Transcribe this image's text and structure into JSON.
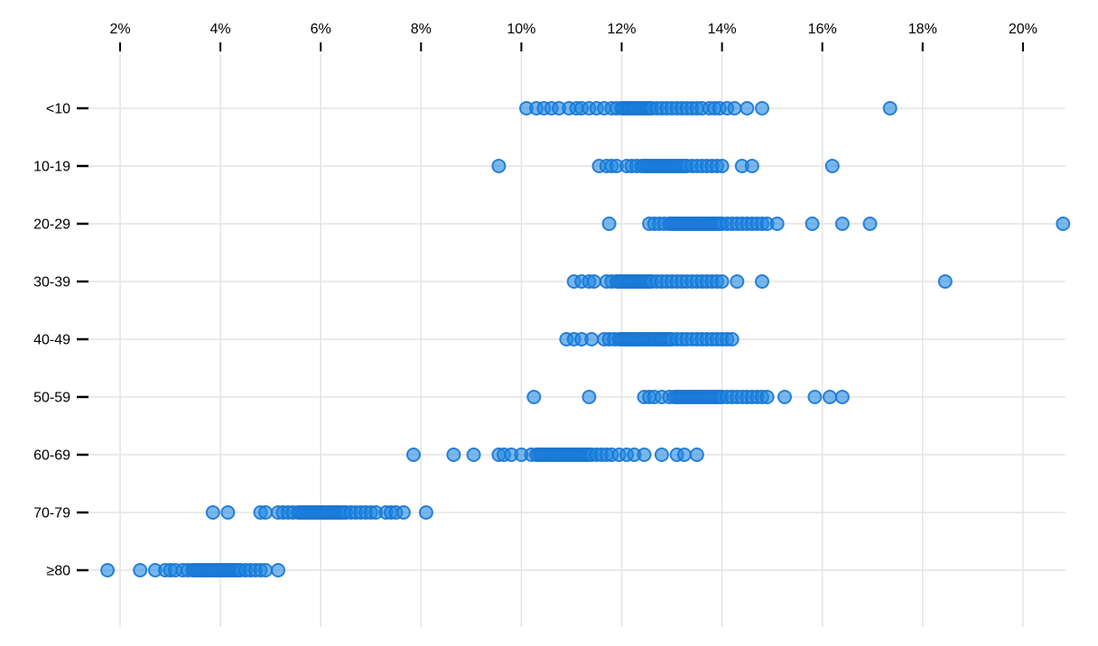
{
  "chart_data": {
    "type": "scatter",
    "variant": "strip-plot",
    "title": "",
    "xlabel": "",
    "ylabel": "",
    "x_axis": {
      "position": "top",
      "unit": "percent",
      "ticks": [
        2,
        4,
        6,
        8,
        10,
        12,
        14,
        16,
        18,
        20
      ],
      "tick_labels": [
        "2%",
        "4%",
        "6%",
        "8%",
        "10%",
        "12%",
        "14%",
        "16%",
        "18%",
        "20%"
      ],
      "range": [
        1.4,
        21.3
      ]
    },
    "y_axis": {
      "position": "left",
      "categories": [
        "<10",
        "10-19",
        "20-29",
        "30-39",
        "40-49",
        "50-59",
        "60-69",
        "70-79",
        "≥80"
      ]
    },
    "grid": true,
    "legend": "none",
    "colors": {
      "dot_fill": "#1e88e5",
      "dot_fill_opacity": 0.6,
      "dot_stroke": "#1976d2",
      "dot_stroke_opacity": 0.9,
      "gridline": "#e4e4e4",
      "axis_tick": "#000000",
      "text": "#000000",
      "background": "#ffffff"
    },
    "series": [
      {
        "name": "<10",
        "values": [
          10.1,
          10.3,
          10.45,
          10.6,
          10.75,
          10.95,
          11.1,
          11.2,
          11.35,
          11.5,
          11.65,
          11.8,
          11.9,
          12.0,
          12.05,
          12.1,
          12.15,
          12.2,
          12.25,
          12.3,
          12.35,
          12.4,
          12.45,
          12.5,
          12.55,
          12.6,
          12.7,
          12.8,
          12.9,
          13.0,
          13.1,
          13.2,
          13.3,
          13.4,
          13.5,
          13.6,
          13.75,
          13.85,
          13.95,
          14.1,
          14.25,
          14.5,
          14.8,
          17.35
        ]
      },
      {
        "name": "10-19",
        "values": [
          9.55,
          11.55,
          11.7,
          11.8,
          11.9,
          12.1,
          12.2,
          12.3,
          12.4,
          12.45,
          12.5,
          12.55,
          12.6,
          12.65,
          12.7,
          12.75,
          12.8,
          12.85,
          12.9,
          12.95,
          13.0,
          13.05,
          13.1,
          13.15,
          13.2,
          13.25,
          13.3,
          13.4,
          13.5,
          13.6,
          13.7,
          13.8,
          13.9,
          14.0,
          14.4,
          14.6,
          16.2
        ]
      },
      {
        "name": "20-29",
        "values": [
          11.75,
          12.55,
          12.65,
          12.75,
          12.85,
          12.95,
          13.0,
          13.05,
          13.1,
          13.15,
          13.2,
          13.25,
          13.3,
          13.35,
          13.4,
          13.45,
          13.5,
          13.55,
          13.6,
          13.65,
          13.7,
          13.75,
          13.8,
          13.85,
          13.9,
          13.95,
          14.0,
          14.1,
          14.2,
          14.3,
          14.4,
          14.5,
          14.6,
          14.7,
          14.8,
          14.9,
          15.1,
          15.8,
          16.4,
          16.95,
          20.8
        ]
      },
      {
        "name": "30-39",
        "values": [
          11.05,
          11.2,
          11.35,
          11.45,
          11.7,
          11.8,
          11.9,
          11.95,
          12.0,
          12.05,
          12.1,
          12.15,
          12.2,
          12.25,
          12.3,
          12.35,
          12.4,
          12.45,
          12.5,
          12.55,
          12.6,
          12.7,
          12.8,
          12.9,
          13.0,
          13.1,
          13.2,
          13.3,
          13.4,
          13.5,
          13.6,
          13.7,
          13.8,
          13.9,
          14.0,
          14.3,
          14.8,
          18.45
        ]
      },
      {
        "name": "40-49",
        "values": [
          10.9,
          11.05,
          11.2,
          11.4,
          11.65,
          11.75,
          11.85,
          11.95,
          12.0,
          12.05,
          12.1,
          12.15,
          12.2,
          12.25,
          12.3,
          12.35,
          12.4,
          12.45,
          12.5,
          12.55,
          12.6,
          12.65,
          12.7,
          12.75,
          12.8,
          12.85,
          12.9,
          12.95,
          13.0,
          13.1,
          13.2,
          13.3,
          13.4,
          13.5,
          13.6,
          13.7,
          13.8,
          13.9,
          14.0,
          14.1,
          14.2
        ]
      },
      {
        "name": "50-59",
        "values": [
          10.25,
          11.35,
          12.45,
          12.55,
          12.65,
          12.8,
          12.95,
          13.05,
          13.1,
          13.15,
          13.2,
          13.25,
          13.3,
          13.35,
          13.4,
          13.45,
          13.5,
          13.55,
          13.6,
          13.65,
          13.7,
          13.75,
          13.8,
          13.85,
          13.9,
          13.95,
          14.0,
          14.1,
          14.2,
          14.3,
          14.4,
          14.5,
          14.6,
          14.7,
          14.8,
          14.9,
          15.25,
          15.85,
          16.15,
          16.4
        ]
      },
      {
        "name": "60-69",
        "values": [
          7.85,
          8.65,
          9.05,
          9.55,
          9.65,
          9.8,
          10.0,
          10.2,
          10.3,
          10.35,
          10.4,
          10.45,
          10.5,
          10.55,
          10.6,
          10.65,
          10.7,
          10.75,
          10.8,
          10.85,
          10.9,
          10.95,
          11.0,
          11.05,
          11.1,
          11.15,
          11.2,
          11.25,
          11.3,
          11.35,
          11.4,
          11.5,
          11.6,
          11.7,
          11.8,
          11.95,
          12.1,
          12.25,
          12.45,
          12.8,
          13.1,
          13.25,
          13.5
        ]
      },
      {
        "name": "70-79",
        "values": [
          3.85,
          4.15,
          4.8,
          4.9,
          5.15,
          5.25,
          5.35,
          5.45,
          5.55,
          5.6,
          5.65,
          5.7,
          5.75,
          5.8,
          5.85,
          5.9,
          5.95,
          6.0,
          6.05,
          6.1,
          6.15,
          6.2,
          6.25,
          6.3,
          6.35,
          6.4,
          6.45,
          6.5,
          6.6,
          6.7,
          6.8,
          6.9,
          7.0,
          7.1,
          7.3,
          7.4,
          7.5,
          7.65,
          8.1
        ]
      },
      {
        "name": "≥80",
        "values": [
          1.75,
          2.4,
          2.7,
          2.9,
          3.0,
          3.1,
          3.25,
          3.35,
          3.45,
          3.5,
          3.55,
          3.6,
          3.65,
          3.7,
          3.75,
          3.8,
          3.85,
          3.9,
          3.95,
          4.0,
          4.05,
          4.1,
          4.15,
          4.2,
          4.25,
          4.3,
          4.35,
          4.4,
          4.5,
          4.6,
          4.7,
          4.8,
          4.9,
          5.15
        ]
      }
    ]
  }
}
